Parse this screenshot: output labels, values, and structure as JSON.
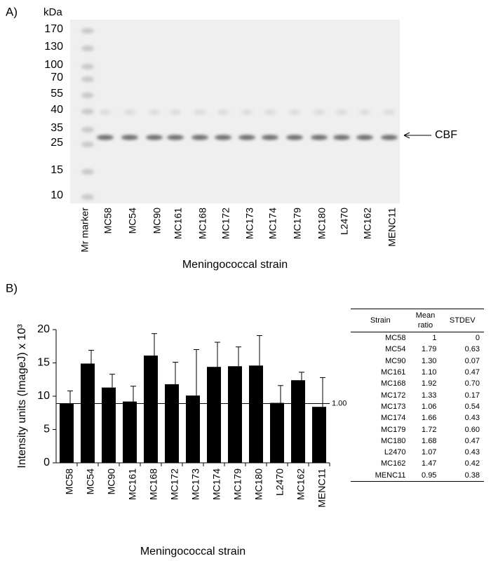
{
  "panel_a": {
    "label": "A)",
    "unit": "kDa",
    "marker_sizes": [
      170,
      130,
      100,
      70,
      55,
      40,
      35,
      25,
      15,
      10
    ],
    "marker_lane": "Mr marker",
    "lanes": [
      "MC58",
      "MC54",
      "MC90",
      "MC161",
      "MC168",
      "MC172",
      "MC173",
      "MC174",
      "MC179",
      "MC180",
      "L2470",
      "MC162",
      "MENC11"
    ],
    "band_label": "CBF",
    "xlabel": "Meningococcal strain"
  },
  "chart_data": {
    "type": "bar",
    "label": "B)",
    "xlabel": "Meningococcal strain",
    "ylabel": "Intensity units (ImageJ) x 10³",
    "categories": [
      "MC58",
      "MC54",
      "MC90",
      "MC161",
      "MC168",
      "MC172",
      "MC173",
      "MC174",
      "MC179",
      "MC180",
      "L2470",
      "MC162",
      "MENC11"
    ],
    "series": [
      {
        "color": "#000000",
        "values": [
          8.9,
          14.9,
          11.3,
          9.2,
          16.1,
          11.8,
          10.1,
          14.4,
          14.5,
          14.6,
          9.0,
          12.4,
          8.4
        ],
        "errors": [
          1.9,
          2.0,
          2.0,
          2.3,
          3.3,
          3.3,
          6.9,
          3.7,
          2.9,
          4.5,
          2.6,
          1.2,
          4.4
        ]
      }
    ],
    "ylim": [
      0,
      20
    ],
    "yticks": [
      0,
      5,
      10,
      15,
      20
    ],
    "reference_line": {
      "value": 8.9,
      "label": "1.00"
    }
  },
  "table": {
    "header": [
      "Strain",
      "Mean ratio",
      "STDEV"
    ],
    "rows": [
      [
        "MC58",
        "1",
        "0"
      ],
      [
        "MC54",
        "1.79",
        "0.63"
      ],
      [
        "MC90",
        "1.30",
        "0.07"
      ],
      [
        "MC161",
        "1.10",
        "0.47"
      ],
      [
        "MC168",
        "1.92",
        "0.70"
      ],
      [
        "MC172",
        "1.33",
        "0.17"
      ],
      [
        "MC173",
        "1.06",
        "0.54"
      ],
      [
        "MC174",
        "1.66",
        "0.43"
      ],
      [
        "MC179",
        "1.72",
        "0.60"
      ],
      [
        "MC180",
        "1.68",
        "0.47"
      ],
      [
        "L2470",
        "1.07",
        "0.43"
      ],
      [
        "MC162",
        "1.47",
        "0.42"
      ],
      [
        "MENC11",
        "0.95",
        "0.38"
      ]
    ]
  }
}
